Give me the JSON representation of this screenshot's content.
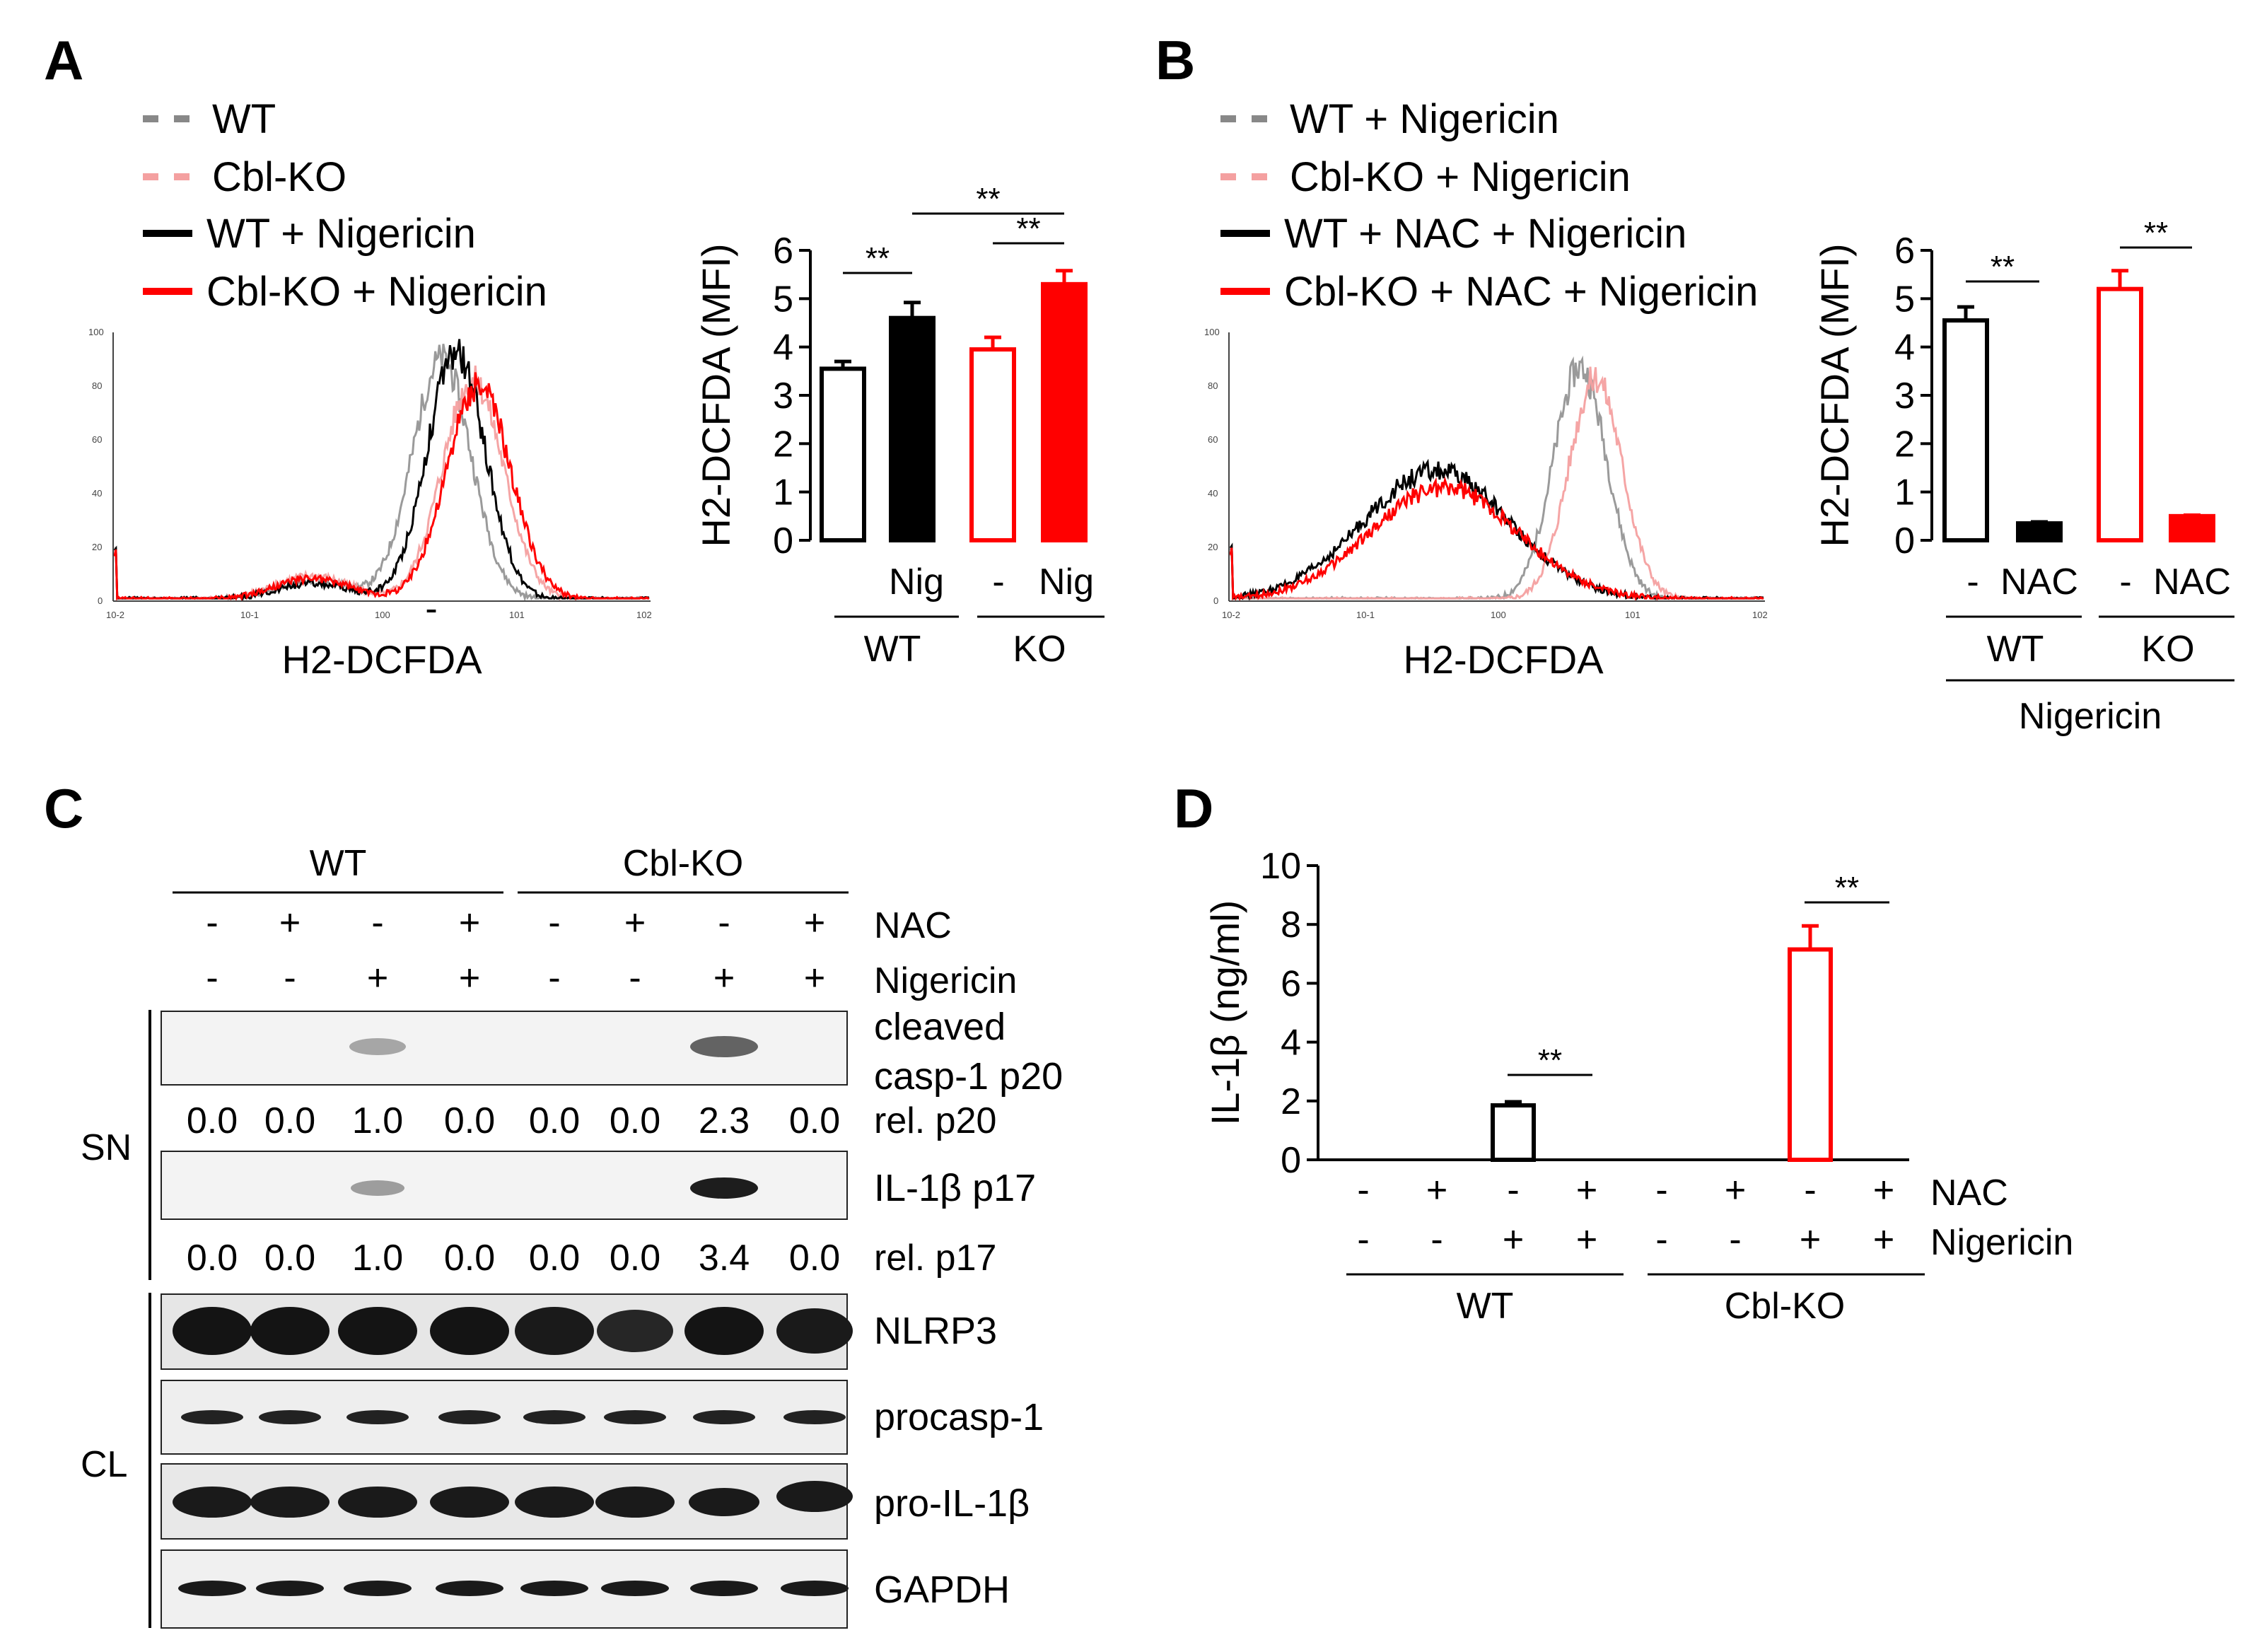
{
  "panels": {
    "A": {
      "letter": "A",
      "legend": [
        "WT",
        "Cbl-KO",
        "WT + Nigericin",
        "Cbl-KO + Nigericin"
      ],
      "hist_xlabel": "H2-DCFDA",
      "hist_yticks": [
        "0",
        "20",
        "40",
        "60",
        "80",
        "100"
      ],
      "hist_xticks": [
        "10-2",
        "10-1",
        "100",
        "101",
        "102"
      ],
      "stars": "**",
      "bar_cond": [
        "-",
        "Nig",
        "-",
        "Nig"
      ],
      "bar_groups": [
        "WT",
        "KO"
      ]
    },
    "B": {
      "letter": "B",
      "legend": [
        "WT + Nigericin",
        "Cbl-KO + Nigericin",
        "WT + NAC + Nigericin",
        "Cbl-KO + NAC + Nigericin"
      ],
      "hist_xlabel": "H2-DCFDA",
      "hist_yticks": [
        "0",
        "20",
        "40",
        "60",
        "80",
        "100"
      ],
      "hist_xticks": [
        "10-2",
        "10-1",
        "100",
        "101",
        "102"
      ],
      "stars": "**",
      "bar_cond": [
        "-",
        "NAC",
        "-",
        "NAC"
      ],
      "bar_groups": [
        "WT",
        "KO"
      ],
      "bar_footer": "Nigericin"
    },
    "C": {
      "letter": "C",
      "groups": [
        "WT",
        "Cbl-KO"
      ],
      "rows": [
        {
          "label": "NAC",
          "signs": [
            "-",
            "+",
            "-",
            "+",
            "-",
            "+",
            "-",
            "+"
          ]
        },
        {
          "label": "Nigericin",
          "signs": [
            "-",
            "-",
            "+",
            "+",
            "-",
            "-",
            "+",
            "+"
          ]
        }
      ],
      "side_labels": [
        "SN",
        "CL"
      ],
      "blots": {
        "p20_label_1": "cleaved",
        "p20_label_2": "casp-1 p20",
        "rel_p20_label": "rel. p20",
        "rel_p20": [
          "0.0",
          "0.0",
          "1.0",
          "0.0",
          "0.0",
          "0.0",
          "2.3",
          "0.0"
        ],
        "p17_label": "IL-1β p17",
        "rel_p17_label": "rel. p17",
        "rel_p17": [
          "0.0",
          "0.0",
          "1.0",
          "0.0",
          "0.0",
          "0.0",
          "3.4",
          "0.0"
        ],
        "nlrp3": "NLRP3",
        "procasp": "procasp-1",
        "proil": "pro-IL-1β",
        "gapdh": "GAPDH"
      }
    },
    "D": {
      "letter": "D",
      "rows": [
        {
          "label": "NAC",
          "signs": [
            "-",
            "+",
            "-",
            "+",
            "-",
            "+",
            "-",
            "+"
          ]
        },
        {
          "label": "Nigericin",
          "signs": [
            "-",
            "-",
            "+",
            "+",
            "-",
            "-",
            "+",
            "+"
          ]
        }
      ],
      "groups": [
        "WT",
        "Cbl-KO"
      ],
      "stars": "**"
    }
  },
  "colors": {
    "black": "#000000",
    "red": "#ff0000",
    "gray": "#888888",
    "pink": "#f4a0a0"
  },
  "chart_data": [
    {
      "id": "A-bar",
      "type": "bar",
      "title": "",
      "ylabel": "H2-DCFDA (MFI)",
      "ylim": [
        0,
        6
      ],
      "yticks": [
        0,
        1,
        2,
        3,
        4,
        5,
        6
      ],
      "categories": [
        "WT -",
        "WT Nig",
        "KO -",
        "KO Nig"
      ],
      "values": [
        3.55,
        4.6,
        3.95,
        5.3
      ],
      "errors": [
        0.15,
        0.32,
        0.25,
        0.28
      ],
      "styles": [
        "black-open",
        "black-fill",
        "red-open",
        "red-fill"
      ],
      "significance": [
        {
          "pair": [
            0,
            1
          ],
          "label": "**"
        },
        {
          "pair": [
            2,
            3
          ],
          "label": "**"
        },
        {
          "pair": [
            1,
            3
          ],
          "label": "**"
        }
      ]
    },
    {
      "id": "B-bar",
      "type": "bar",
      "title": "",
      "ylabel": "H2-DCFDA (MFI)",
      "ylim": [
        0,
        6
      ],
      "yticks": [
        0,
        1,
        2,
        3,
        4,
        5,
        6
      ],
      "categories": [
        "WT -",
        "WT NAC",
        "KO -",
        "KO NAC"
      ],
      "values": [
        4.55,
        0.35,
        5.2,
        0.5
      ],
      "errors": [
        0.28,
        0.03,
        0.38,
        0.02
      ],
      "styles": [
        "black-open",
        "black-fill",
        "red-open",
        "red-fill"
      ],
      "significance": [
        {
          "pair": [
            0,
            1
          ],
          "label": "**"
        },
        {
          "pair": [
            2,
            3
          ],
          "label": "**"
        }
      ]
    },
    {
      "id": "D-bar",
      "type": "bar",
      "title": "",
      "ylabel": "IL-1β (ng/ml)",
      "ylim": [
        0,
        10
      ],
      "yticks": [
        0,
        2,
        4,
        6,
        8,
        10
      ],
      "categories": [
        "WT -/-",
        "WT +/-",
        "WT -/+",
        "WT +/+",
        "KO -/-",
        "KO +/-",
        "KO -/+",
        "KO +/+"
      ],
      "values": [
        0,
        0,
        1.85,
        0,
        0,
        0,
        7.15,
        0
      ],
      "errors": [
        0,
        0,
        0.12,
        0,
        0,
        0,
        0.8,
        0
      ],
      "styles": [
        "black-open",
        "black-open",
        "black-open",
        "black-open",
        "red-open",
        "red-open",
        "red-open",
        "red-open"
      ],
      "significance": [
        {
          "pair": [
            2,
            3
          ],
          "label": "**"
        },
        {
          "pair": [
            6,
            7
          ],
          "label": "**"
        }
      ]
    },
    {
      "id": "A-hist",
      "type": "line",
      "xlabel": "H2-DCFDA",
      "ylabel": "",
      "xscale": "log",
      "xlim": [
        0.01,
        100
      ],
      "ylim": [
        0,
        100
      ],
      "series": [
        {
          "name": "WT",
          "style": "gray-dashed",
          "peak_x": 2.8,
          "peak_y": 90,
          "width": 0.22,
          "low_x": 0.3,
          "low_y": 7
        },
        {
          "name": "Cbl-KO",
          "style": "pink-dashed",
          "peak_x": 4.8,
          "peak_y": 82,
          "width": 0.23,
          "low_x": 0.3,
          "low_y": 9
        },
        {
          "name": "WT + Nigericin",
          "style": "black-solid",
          "peak_x": 3.6,
          "peak_y": 92,
          "width": 0.22,
          "low_x": 0.3,
          "low_y": 6
        },
        {
          "name": "Cbl-KO + Nigericin",
          "style": "red-solid",
          "peak_x": 5.3,
          "peak_y": 80,
          "width": 0.24,
          "low_x": 0.3,
          "low_y": 8
        }
      ]
    },
    {
      "id": "B-hist",
      "type": "line",
      "xlabel": "H2-DCFDA",
      "ylabel": "",
      "xscale": "log",
      "xlim": [
        0.01,
        100
      ],
      "ylim": [
        0,
        100
      ],
      "series": [
        {
          "name": "WT + Nigericin",
          "style": "gray-dashed",
          "peak_x": 4.2,
          "peak_y": 87,
          "width": 0.2
        },
        {
          "name": "Cbl-KO + Nigericin",
          "style": "pink-dashed",
          "peak_x": 5.5,
          "peak_y": 83,
          "width": 0.2
        },
        {
          "name": "WT + NAC + Nigericin",
          "style": "black-solid",
          "peak_x": 0.35,
          "peak_y": 48,
          "width": 0.55
        },
        {
          "name": "Cbl-KO + NAC + Nigericin",
          "style": "red-solid",
          "peak_x": 0.4,
          "peak_y": 42,
          "width": 0.55
        }
      ]
    }
  ]
}
